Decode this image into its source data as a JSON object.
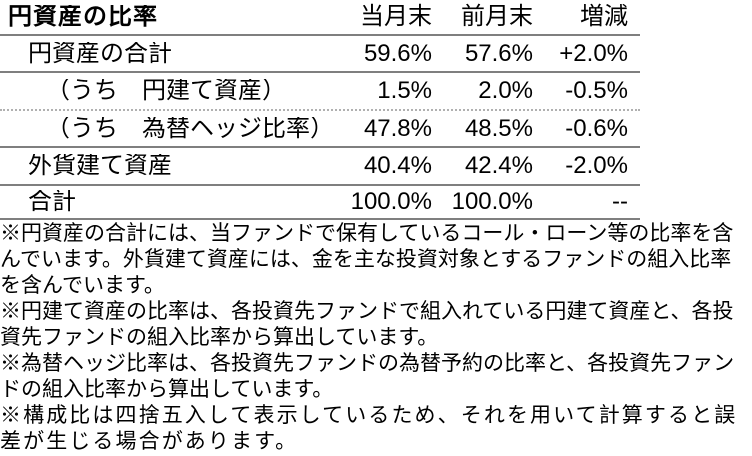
{
  "table": {
    "title": "円資産の比率",
    "columns": {
      "current": "当月末",
      "previous": "前月末",
      "change": "増減"
    },
    "rows": [
      {
        "label": "円資産の合計",
        "current": "59.6%",
        "previous": "57.6%",
        "change": "+2.0%"
      },
      {
        "label": "（うち　円建て資産）",
        "current": "1.5%",
        "previous": "2.0%",
        "change": "-0.5%"
      },
      {
        "label": "（うち　為替ヘッジ比率）",
        "current": "47.8%",
        "previous": "48.5%",
        "change": "-0.6%"
      },
      {
        "label": "外貨建て資産",
        "current": "40.4%",
        "previous": "42.4%",
        "change": "-2.0%"
      },
      {
        "label": "合計",
        "current": "100.0%",
        "previous": "100.0%",
        "change": "--"
      }
    ]
  },
  "footnotes": [
    "※円資産の合計には、当ファンドで保有しているコール・ローン等の比率を含んでいます。外貨建て資産には、金を主な投資対象とするファンドの組入比率を含んでいます。",
    "※円建て資産の比率は、各投資先ファンドで組入れている円建て資産と、各投資先ファンドの組入比率から算出しています。",
    "※為替ヘッジ比率は、各投資先ファンドの為替予約の比率と、各投資先ファンドの組入比率から算出しています。",
    "※構成比は四捨五入して表示しているため、それを用いて計算すると誤差が生じる場合があります。"
  ],
  "colors": {
    "text": "#000000",
    "rule": "#7f7f7f",
    "dotted_rule": "#b0b0b0"
  }
}
